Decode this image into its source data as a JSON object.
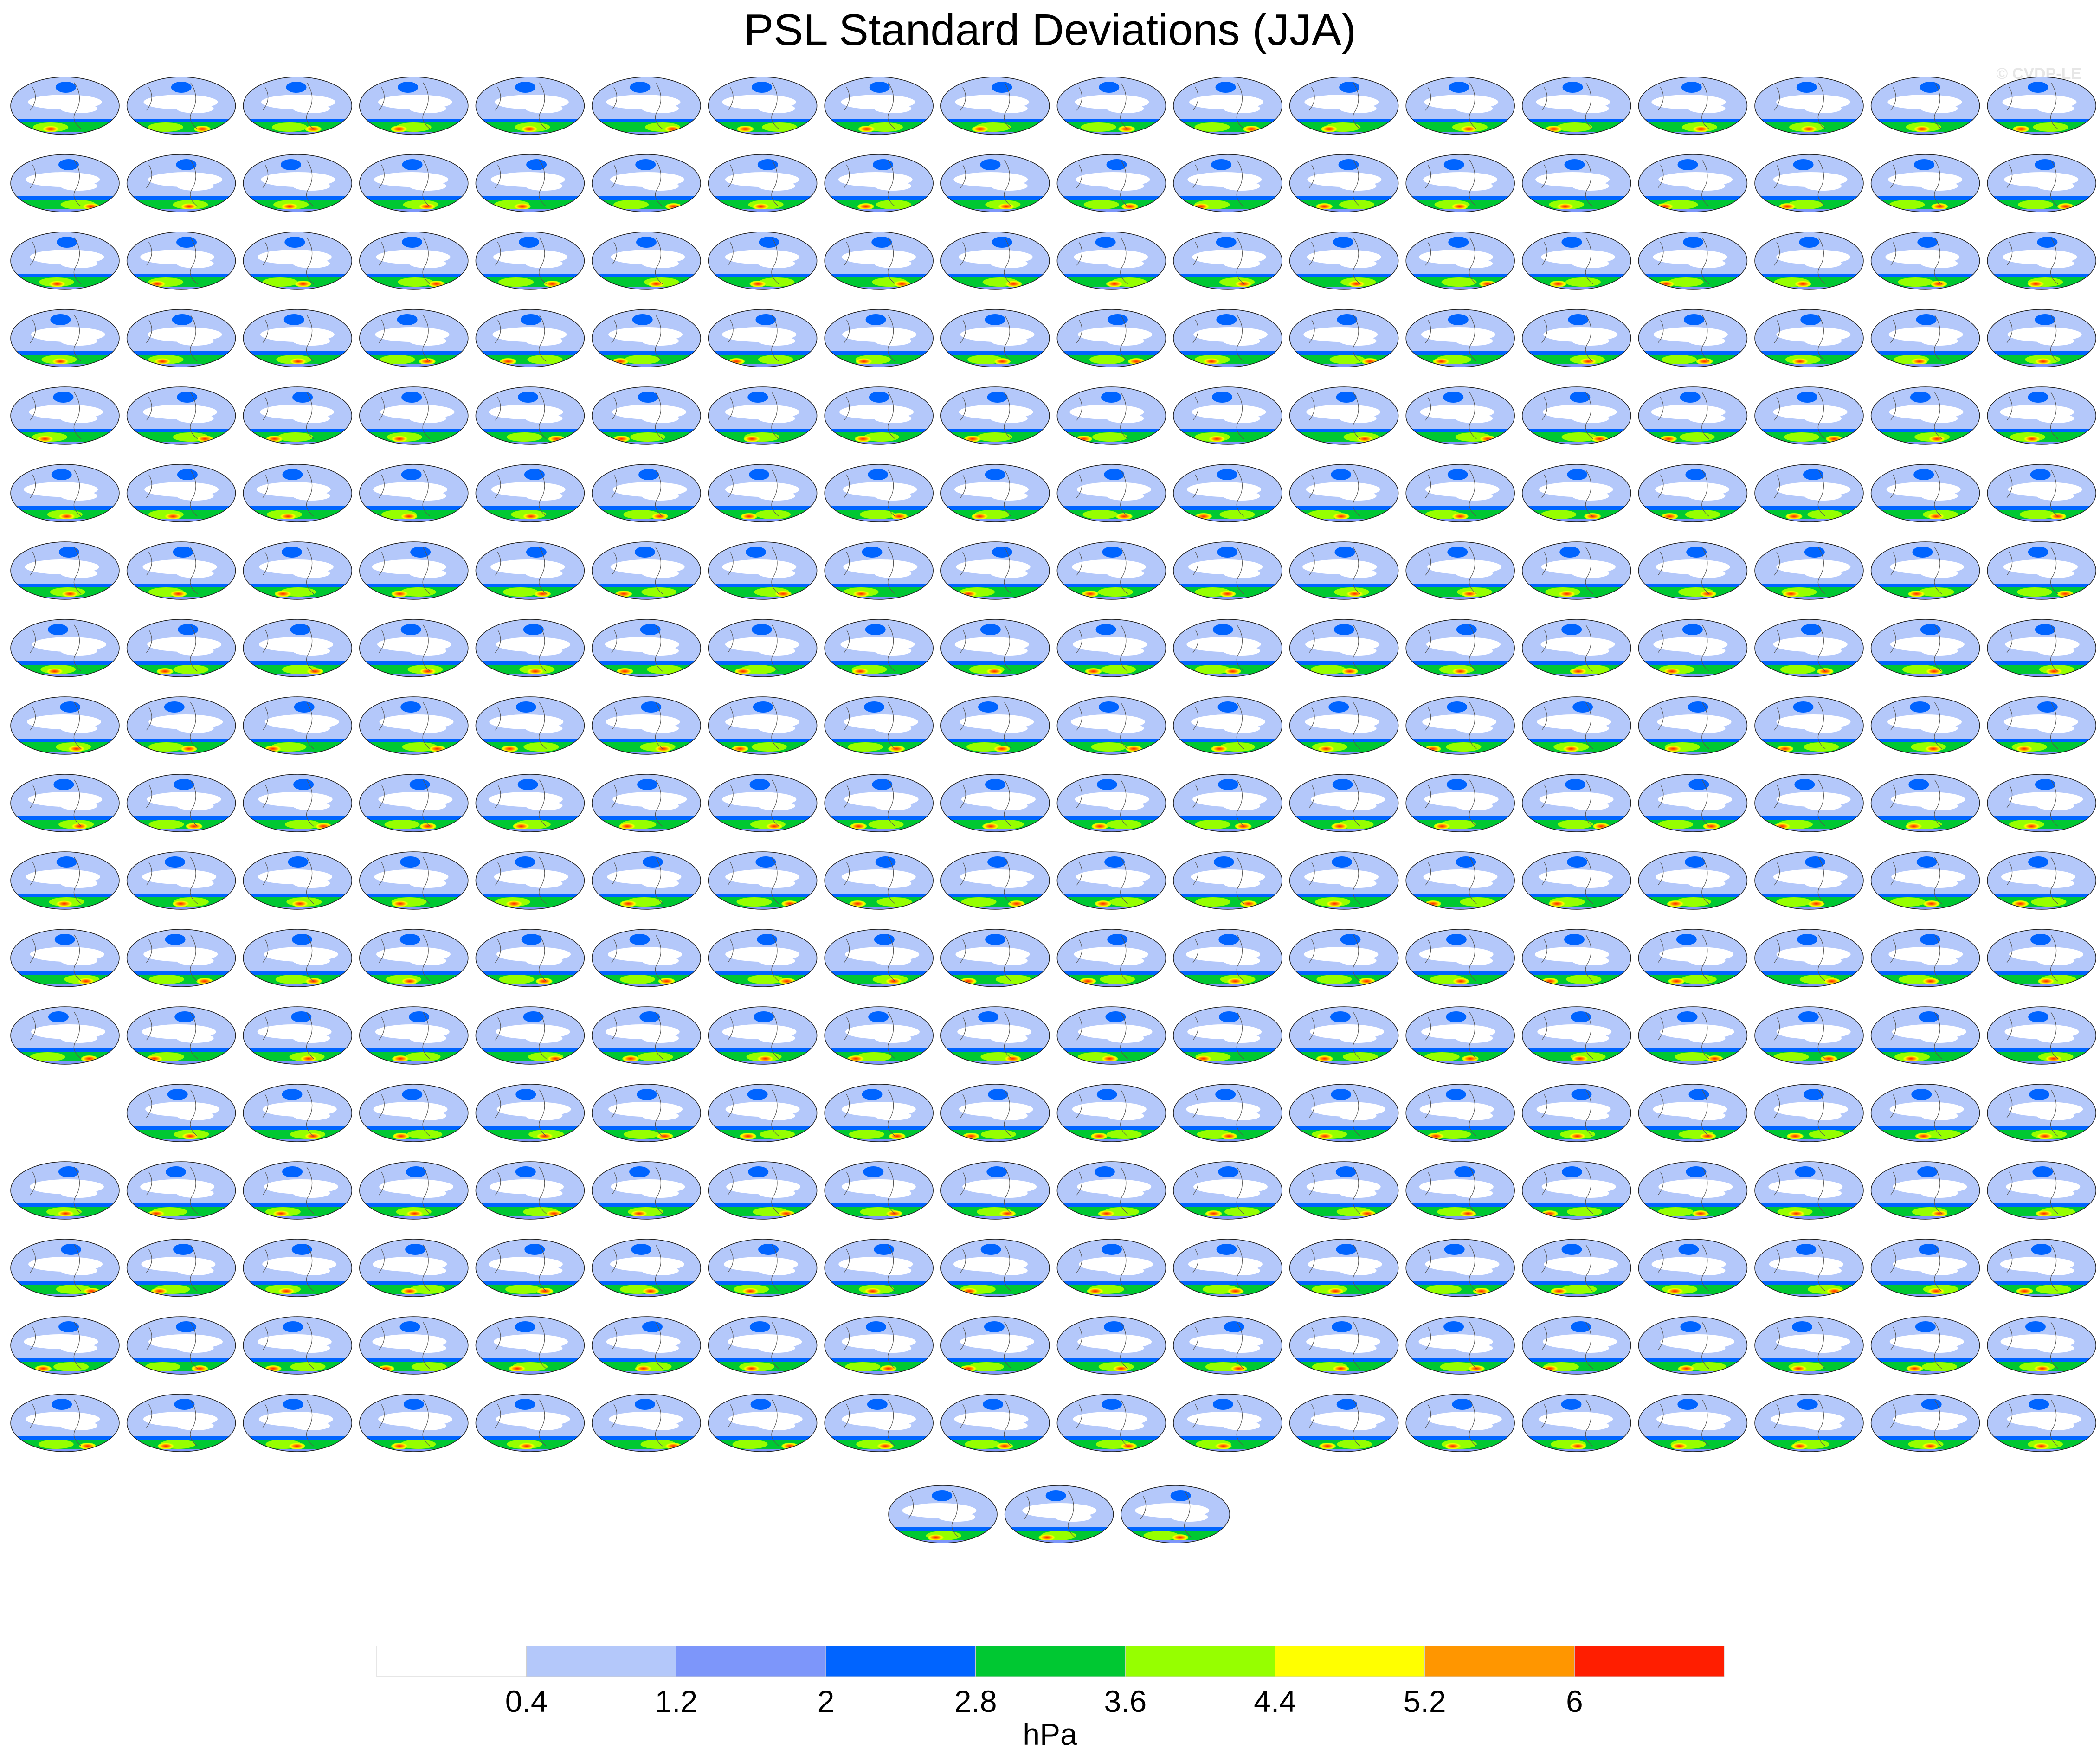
{
  "title": "PSL Standard Deviations (JJA)",
  "credit": "© CVDP-LE",
  "chart_data": {
    "type": "heatmap",
    "title": "PSL Standard Deviations (JJA)",
    "description": "Grid of global ensemble-member maps of JJA sea level pressure standard deviation; panel titles are too small to read.",
    "panel_rows": [
      18,
      18,
      18,
      18,
      18,
      18,
      18,
      18,
      18,
      18,
      18,
      18,
      18,
      17,
      18,
      18,
      18,
      18,
      3
    ],
    "colorbar": {
      "unit": "hPa",
      "levels": [
        0.4,
        1.2,
        2,
        2.8,
        3.6,
        4.4,
        5.2,
        6
      ],
      "level_labels": [
        "0.4",
        "1.2",
        "2",
        "2.8",
        "3.6",
        "4.4",
        "5.2",
        "6"
      ],
      "colors": [
        "#ffffff",
        "#b4c8fa",
        "#7d96fa",
        "#0064ff",
        "#00c832",
        "#96ff00",
        "#ffff00",
        "#ff9600",
        "#ff1e00"
      ]
    }
  }
}
